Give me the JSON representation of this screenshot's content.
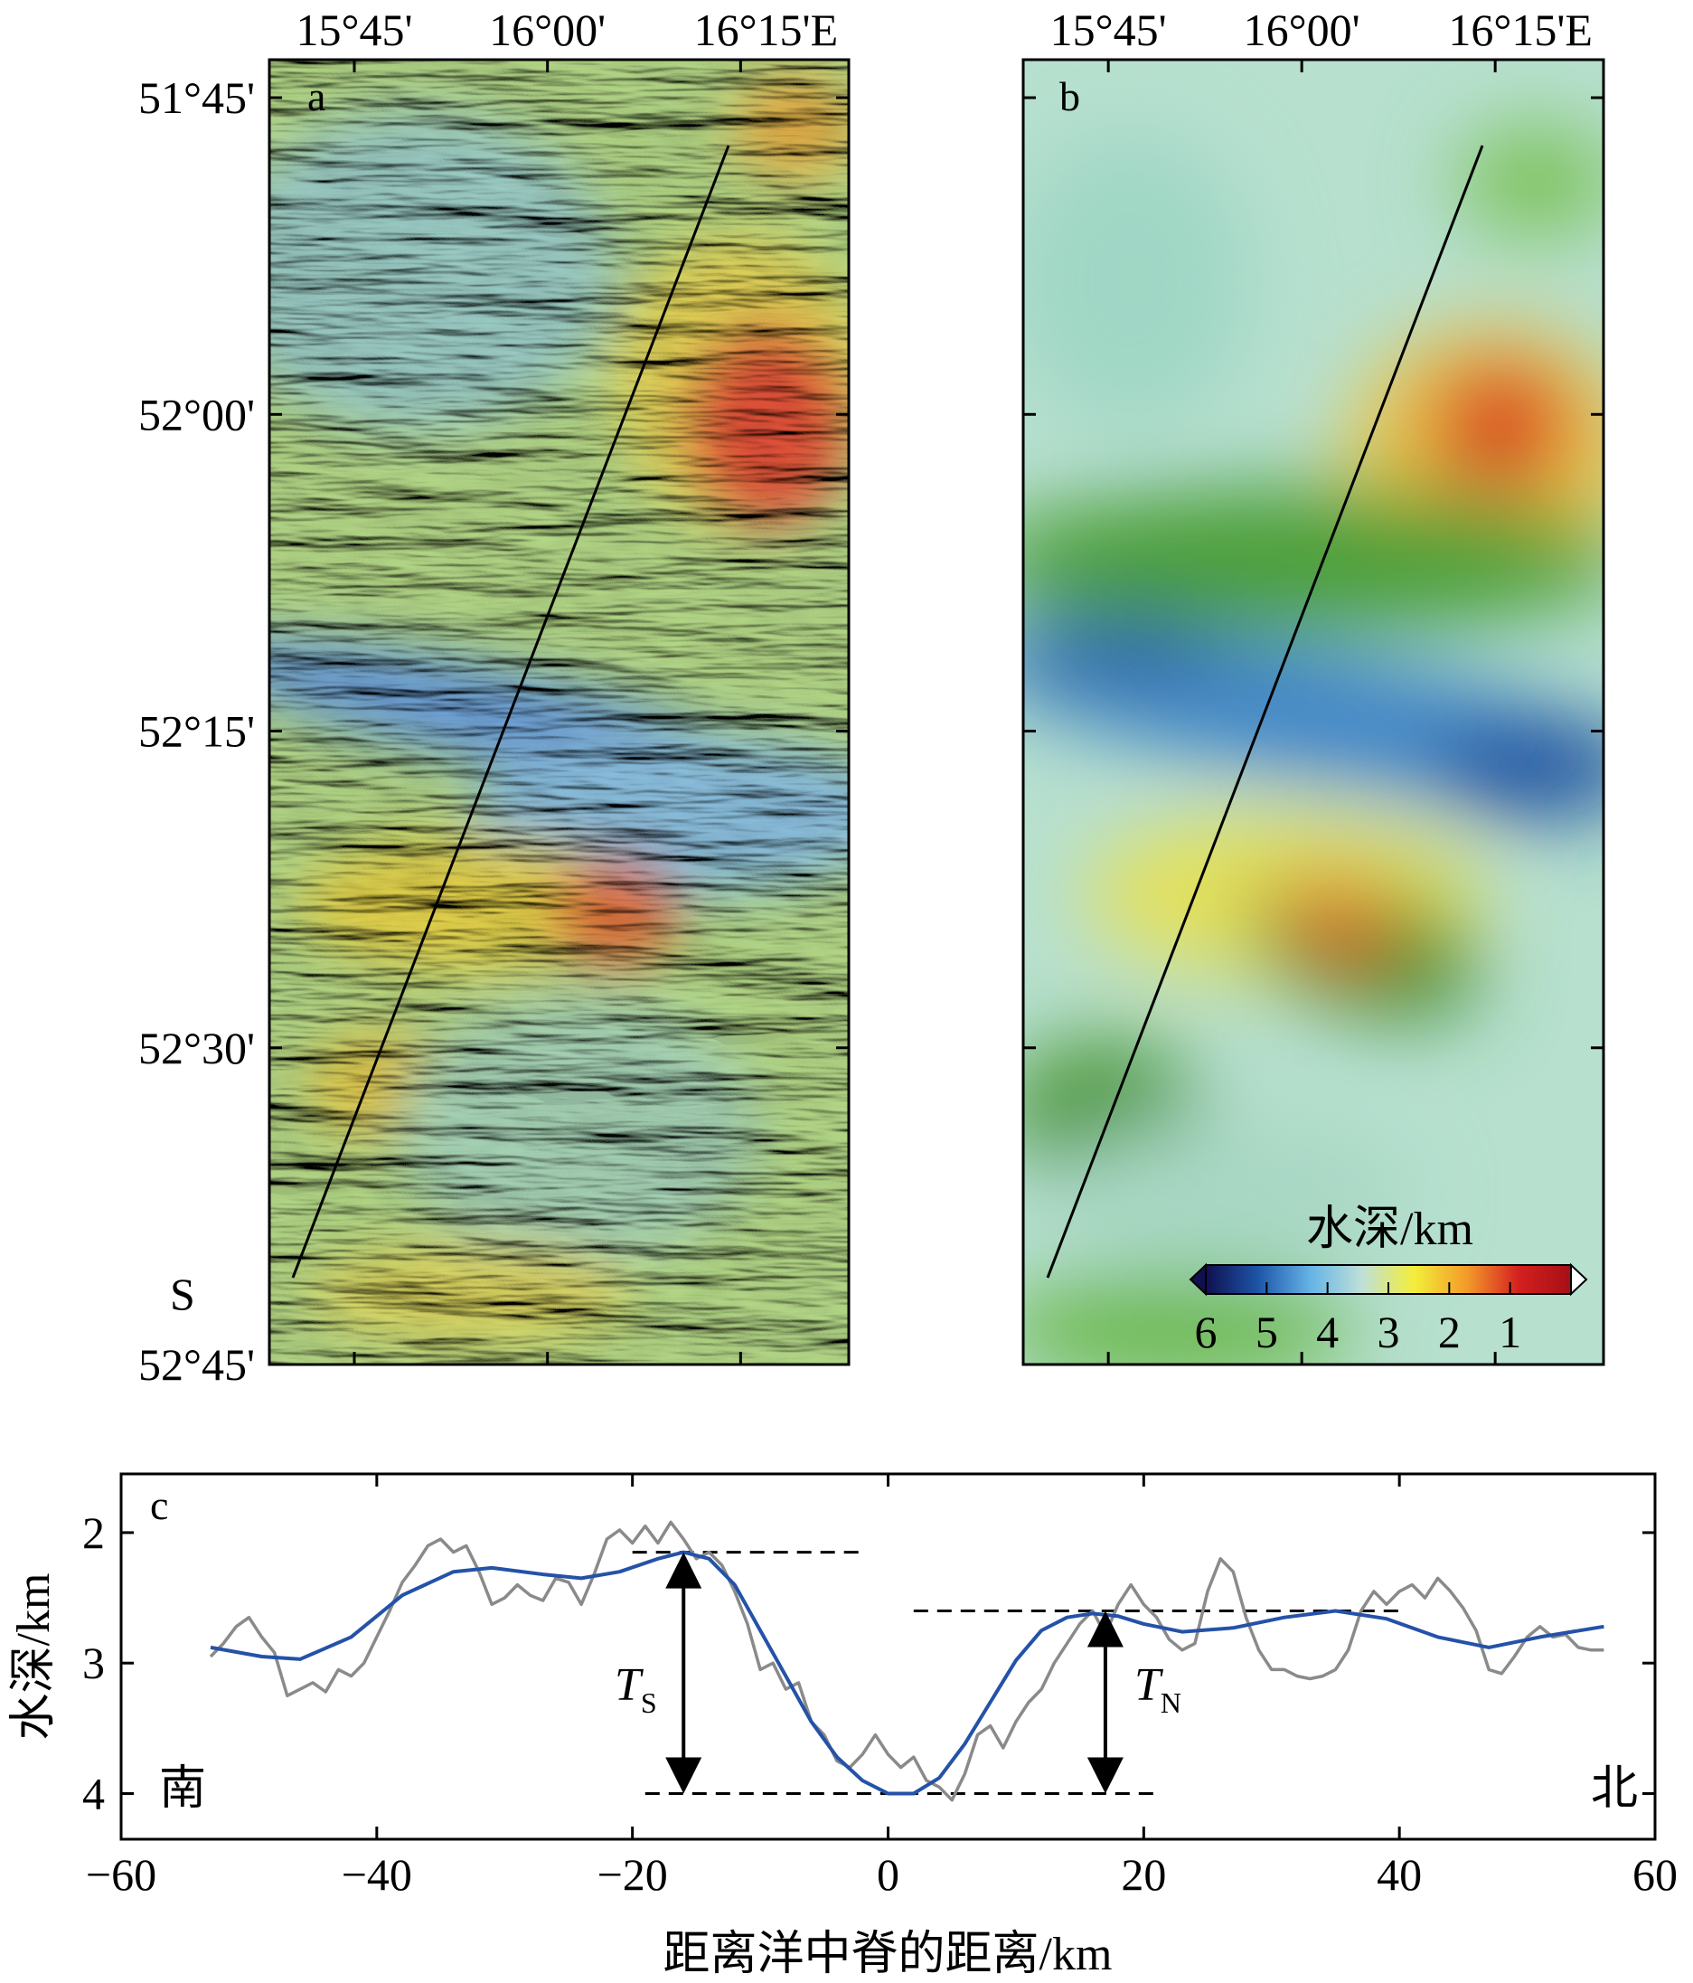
{
  "chart_data": [
    {
      "panel": "a",
      "type": "heatmap",
      "description_source": "shaded-relief bathymetry map",
      "top_tick_labels": [
        "15°45'",
        "16°00'",
        "16°15'E"
      ],
      "left_tick_labels": [
        "51°45'",
        "52°00'",
        "52°15'",
        "52°30'",
        "52°45'"
      ],
      "lon_ticks": [
        15.75,
        16.0,
        16.25
      ],
      "lat_ticks": [
        51.75,
        52.0,
        52.25,
        52.5,
        52.75
      ],
      "xlim": [
        15.64,
        16.39
      ],
      "ylim": [
        51.72,
        52.75
      ],
      "profile_label": "S",
      "profile_line": {
        "start_lon": 15.67,
        "start_lat": 52.7,
        "end_lon": 16.25,
        "end_lat": 51.77
      }
    },
    {
      "panel": "b",
      "type": "heatmap",
      "top_tick_labels": [
        "15°45'",
        "16°00'",
        "16°15'E"
      ],
      "lon_ticks": [
        15.75,
        16.0,
        16.25
      ],
      "lat_ticks": [
        51.75,
        52.0,
        52.25,
        52.5,
        52.75
      ],
      "xlim": [
        15.64,
        16.39
      ],
      "ylim": [
        51.72,
        52.75
      ],
      "profile_line": {
        "start_lon": 15.67,
        "start_lat": 52.7,
        "end_lon": 16.25,
        "end_lat": 51.77
      },
      "colorbar": {
        "title": "水深/km",
        "ticks": [
          "6",
          "5",
          "4",
          "3",
          "2",
          "1"
        ],
        "tick_values": [
          6,
          5,
          4,
          3,
          2,
          1
        ],
        "range": [
          6.0,
          0.0
        ],
        "colors": [
          "#10104e",
          "#1d55a8",
          "#65b3e6",
          "#bfe0d8",
          "#f3ee3a",
          "#f39b2a",
          "#d42020",
          "#a50f15"
        ]
      }
    },
    {
      "panel": "c",
      "type": "line",
      "xlabel": "距离洋中脊的距离/km",
      "ylabel": "水深/km",
      "xlim": [
        -60,
        60
      ],
      "ylim": [
        4.35,
        1.55
      ],
      "xticks": [
        -60,
        -40,
        -20,
        0,
        20,
        40,
        60
      ],
      "xtick_labels": [
        "−60",
        "−40",
        "−20",
        "0",
        "20",
        "40",
        "60"
      ],
      "yticks": [
        2,
        3,
        4
      ],
      "ytick_labels": [
        "2",
        "3",
        "4"
      ],
      "text_south": "南",
      "text_north": "北",
      "ts_label": {
        "main": "T",
        "sub": "S"
      },
      "tn_label": {
        "main": "T",
        "sub": "N"
      },
      "ts_arrow": {
        "x": -16,
        "y_top": 2.15,
        "y_bottom": 4.0
      },
      "tn_arrow": {
        "x": 17,
        "y_top": 2.6,
        "y_bottom": 4.0
      },
      "ref_lines": [
        {
          "x": [
            -20,
            -2
          ],
          "y": 2.15
        },
        {
          "x": 2,
          "x_end": 40,
          "y": 2.6
        },
        {
          "x": [
            -19,
            21
          ],
          "y": 4.0
        }
      ],
      "series": [
        {
          "color": "#2452a8",
          "x": [
            -53,
            -49,
            -46,
            -42,
            -38,
            -34,
            -31,
            -27,
            -24,
            -21,
            -18,
            -16,
            -14,
            -12,
            -10,
            -8,
            -6,
            -4,
            -2,
            0,
            2,
            4,
            6,
            8,
            10,
            12,
            14,
            16,
            18,
            20,
            23,
            27,
            31,
            35,
            39,
            43,
            47,
            51,
            56
          ],
          "y": [
            2.88,
            2.95,
            2.97,
            2.8,
            2.48,
            2.3,
            2.27,
            2.32,
            2.35,
            2.3,
            2.2,
            2.15,
            2.2,
            2.4,
            2.75,
            3.1,
            3.45,
            3.72,
            3.9,
            4.0,
            4.0,
            3.88,
            3.62,
            3.3,
            2.98,
            2.75,
            2.65,
            2.62,
            2.64,
            2.7,
            2.76,
            2.73,
            2.65,
            2.6,
            2.66,
            2.8,
            2.88,
            2.8,
            2.72
          ]
        },
        {
          "color": "#8a8a8a",
          "x": [
            -53,
            -52,
            -51,
            -50,
            -49,
            -48,
            -47,
            -46,
            -45,
            -44,
            -43,
            -42,
            -41,
            -40,
            -39,
            -38,
            -37,
            -36,
            -35,
            -34,
            -33,
            -32,
            -31,
            -30,
            -29,
            -28,
            -27,
            -26,
            -25,
            -24,
            -23,
            -22,
            -21,
            -20,
            -19,
            -18,
            -17,
            -16,
            -15,
            -14,
            -13,
            -12,
            -11,
            -10,
            -9,
            -8,
            -7,
            -6,
            -5,
            -4,
            -3,
            -2,
            -1,
            0,
            1,
            2,
            3,
            4,
            5,
            6,
            7,
            8,
            9,
            10,
            11,
            12,
            13,
            14,
            15,
            16,
            17,
            18,
            19,
            20,
            21,
            22,
            23,
            24,
            25,
            26,
            27,
            28,
            29,
            30,
            31,
            32,
            33,
            34,
            35,
            36,
            37,
            38,
            39,
            40,
            41,
            42,
            43,
            44,
            45,
            46,
            47,
            48,
            49,
            50,
            51,
            52,
            53,
            54,
            55,
            56
          ],
          "y": [
            2.95,
            2.85,
            2.72,
            2.65,
            2.8,
            2.92,
            3.25,
            3.2,
            3.15,
            3.22,
            3.05,
            3.1,
            3.0,
            2.8,
            2.6,
            2.38,
            2.25,
            2.1,
            2.05,
            2.15,
            2.1,
            2.3,
            2.55,
            2.5,
            2.4,
            2.48,
            2.52,
            2.35,
            2.38,
            2.55,
            2.32,
            2.05,
            1.98,
            2.08,
            1.95,
            2.08,
            1.92,
            2.05,
            2.2,
            2.15,
            2.25,
            2.45,
            2.7,
            3.05,
            3.0,
            3.2,
            3.15,
            3.45,
            3.55,
            3.75,
            3.8,
            3.7,
            3.55,
            3.7,
            3.8,
            3.72,
            3.9,
            3.95,
            4.05,
            3.85,
            3.55,
            3.48,
            3.65,
            3.45,
            3.3,
            3.2,
            3.0,
            2.85,
            2.7,
            2.6,
            2.78,
            2.55,
            2.4,
            2.55,
            2.65,
            2.82,
            2.9,
            2.85,
            2.45,
            2.2,
            2.3,
            2.65,
            2.9,
            3.05,
            3.05,
            3.1,
            3.12,
            3.1,
            3.05,
            2.9,
            2.6,
            2.45,
            2.55,
            2.45,
            2.4,
            2.5,
            2.35,
            2.45,
            2.58,
            2.75,
            3.05,
            3.08,
            2.95,
            2.8,
            2.72,
            2.8,
            2.78,
            2.88,
            2.9,
            2.9
          ]
        }
      ]
    }
  ]
}
